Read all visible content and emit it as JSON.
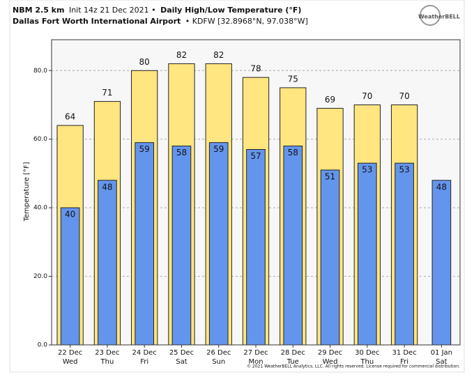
{
  "chart_data": {
    "type": "bar",
    "title_parts": [
      "NBM 2.5 km",
      "Init 14z 21 Dec 2021 •",
      "Daily High/Low Temperature (°F)"
    ],
    "subtitle_parts": [
      "Dallas Fort Worth International Airport",
      "• KDFW [32.8968°N, 97.038°W]"
    ],
    "logo": "WeatherBELL",
    "y_label": "Temperature [°F]",
    "footer": "© 2021 WeatherBELL Analytics, LLC. All rights reserved. License required for commercial distribution.",
    "categories": [
      "22 Dec",
      "23 Dec",
      "24 Dec",
      "25 Dec",
      "26 Dec",
      "27 Dec",
      "28 Dec",
      "29 Dec",
      "30 Dec",
      "31 Dec",
      "01 Jan"
    ],
    "category_days": [
      "Wed",
      "Thu",
      "Fri",
      "Sat",
      "Sun",
      "Mon",
      "Tue",
      "Wed",
      "Thu",
      "Fri",
      "Sat"
    ],
    "series": [
      {
        "color": "#ffe680",
        "values": [
          64,
          71,
          80,
          82,
          82,
          78,
          75,
          69,
          70,
          70,
          null
        ]
      },
      {
        "color": "#6495ed",
        "values": [
          40,
          48,
          59,
          58,
          59,
          57,
          58,
          51,
          53,
          53,
          48
        ]
      }
    ],
    "ylim": [
      0,
      89
    ],
    "yticks": [
      {
        "value": 0,
        "label": "0.0"
      },
      {
        "value": 20,
        "label": "20.0"
      },
      {
        "value": 40,
        "label": "40.0"
      },
      {
        "value": 60,
        "label": "60.0"
      },
      {
        "value": 80,
        "label": "80.0"
      }
    ],
    "grid": true
  }
}
